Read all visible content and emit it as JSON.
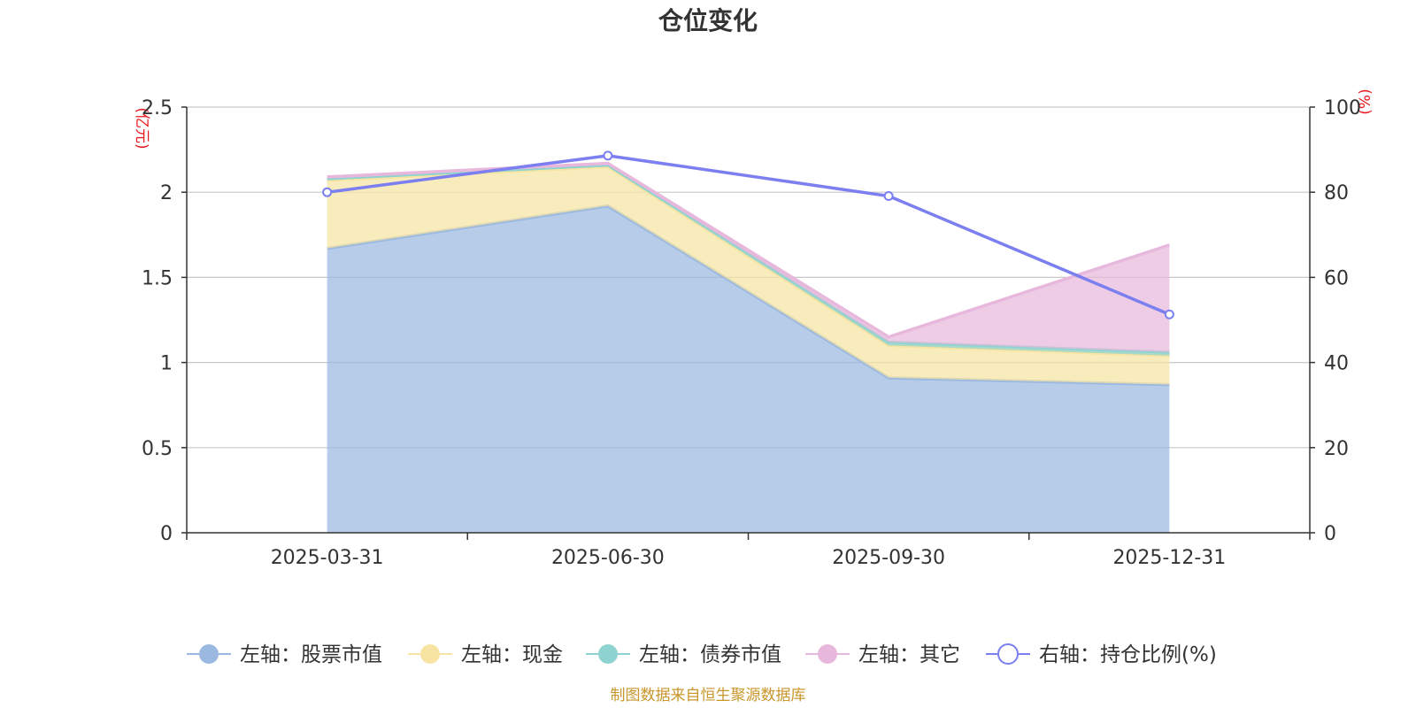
{
  "chart_data": {
    "type": "area",
    "title": "仓位变化",
    "categories": [
      "2025-03-31",
      "2025-06-30",
      "2025-09-30",
      "2025-12-31"
    ],
    "left_axis": {
      "unit": "(亿元)",
      "ylim": [
        0,
        2.5
      ],
      "ticks": [
        "0",
        "0.5",
        "1",
        "1.5",
        "2",
        "2.5"
      ]
    },
    "right_axis": {
      "unit": "(%)",
      "ylim": [
        0,
        100
      ],
      "ticks": [
        "0",
        "20",
        "40",
        "60",
        "80",
        "100"
      ]
    },
    "series": [
      {
        "name": "左轴：股票市值",
        "axis": "left",
        "kind": "stacked-area",
        "color": "#9ab8e0",
        "values": [
          1.67,
          1.92,
          0.91,
          0.87
        ]
      },
      {
        "name": "左轴：现金",
        "axis": "left",
        "kind": "stacked-area",
        "color": "#f7e4a2",
        "values": [
          0.4,
          0.23,
          0.19,
          0.17
        ]
      },
      {
        "name": "左轴：债券市值",
        "axis": "left",
        "kind": "stacked-area",
        "color": "#8fd3d0",
        "values": [
          0.01,
          0.01,
          0.02,
          0.02
        ]
      },
      {
        "name": "左轴：其它",
        "axis": "left",
        "kind": "stacked-area",
        "color": "#e8b8dc",
        "values": [
          0.01,
          0.01,
          0.03,
          0.63
        ]
      },
      {
        "name": "右轴：持仓比例(%)",
        "axis": "right",
        "kind": "line",
        "color": "#7b7fef",
        "values": [
          80.0,
          88.6,
          79.1,
          51.3
        ]
      }
    ],
    "source_note": "制图数据来自恒生聚源数据库"
  }
}
